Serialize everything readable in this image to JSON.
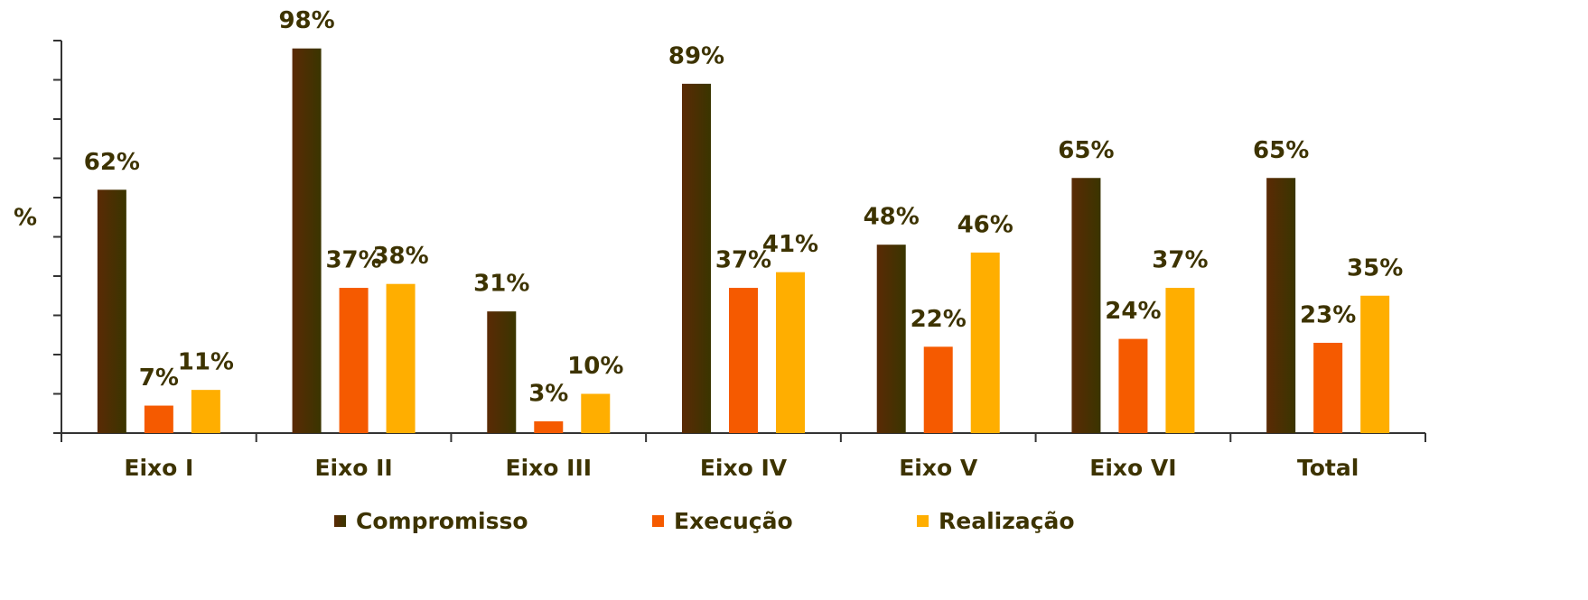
{
  "chart_data": {
    "type": "bar",
    "y_label": "%",
    "categories": [
      "Eixo I",
      "Eixo II",
      "Eixo III",
      "Eixo IV",
      "Eixo V",
      "Eixo VI",
      "Total"
    ],
    "series": [
      {
        "name": "Compromisso",
        "color": "#5a2a05",
        "values": [
          62,
          98,
          31,
          89,
          48,
          65,
          65
        ],
        "value_labels": [
          "62%",
          "98%",
          "31%",
          "89%",
          "48%",
          "65%",
          "65%"
        ]
      },
      {
        "name": "Execução",
        "color": "#f55a00",
        "values": [
          7,
          37,
          3,
          37,
          22,
          24,
          23
        ],
        "value_labels": [
          "7%",
          "37%",
          "3%",
          "37%",
          "22%",
          "24%",
          "23%"
        ]
      },
      {
        "name": "Realização",
        "color": "#ffae00",
        "values": [
          11,
          38,
          10,
          41,
          46,
          37,
          35
        ],
        "value_labels": [
          "11%",
          "38%",
          "10%",
          "41%",
          "46%",
          "37%",
          "35%"
        ]
      }
    ],
    "ylim": [
      0,
      100
    ],
    "yticks": [
      0,
      10,
      20,
      30,
      40,
      50,
      60,
      70,
      80,
      90,
      100
    ],
    "grid": false
  }
}
